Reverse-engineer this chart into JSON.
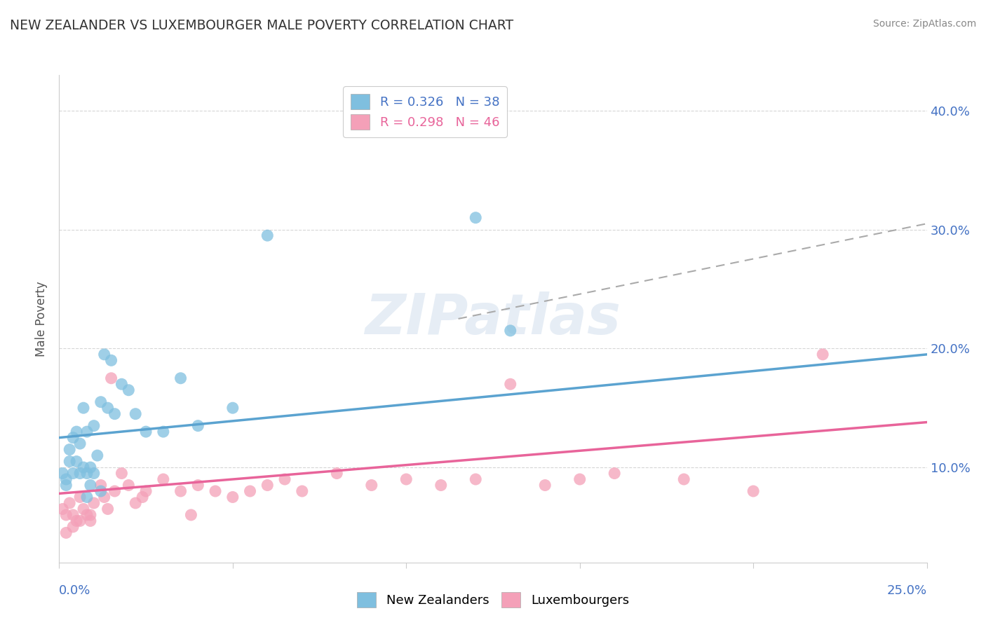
{
  "title": "NEW ZEALANDER VS LUXEMBOURGER MALE POVERTY CORRELATION CHART",
  "source": "Source: ZipAtlas.com",
  "ylabel_label": "Male Poverty",
  "legend_nz": "R = 0.326   N = 38",
  "legend_lux": "R = 0.298   N = 46",
  "legend_label_nz": "New Zealanders",
  "legend_label_lux": "Luxembourgers",
  "watermark": "ZIPatlas",
  "nz_color": "#7fbfdf",
  "lux_color": "#f4a0b8",
  "nz_line_color": "#5ba3d0",
  "lux_line_color": "#e8649a",
  "dashed_line_color": "#aaaaaa",
  "background_color": "#ffffff",
  "xlim": [
    0.0,
    0.25
  ],
  "ylim": [
    0.02,
    0.43
  ],
  "nz_scatter_x": [
    0.001,
    0.002,
    0.002,
    0.003,
    0.003,
    0.004,
    0.004,
    0.005,
    0.005,
    0.006,
    0.006,
    0.007,
    0.007,
    0.008,
    0.008,
    0.009,
    0.009,
    0.01,
    0.01,
    0.011,
    0.012,
    0.013,
    0.014,
    0.015,
    0.016,
    0.018,
    0.02,
    0.022,
    0.025,
    0.03,
    0.035,
    0.04,
    0.05,
    0.06,
    0.12,
    0.13,
    0.008,
    0.012
  ],
  "nz_scatter_y": [
    0.095,
    0.09,
    0.085,
    0.115,
    0.105,
    0.125,
    0.095,
    0.13,
    0.105,
    0.12,
    0.095,
    0.15,
    0.1,
    0.095,
    0.13,
    0.1,
    0.085,
    0.095,
    0.135,
    0.11,
    0.155,
    0.195,
    0.15,
    0.19,
    0.145,
    0.17,
    0.165,
    0.145,
    0.13,
    0.13,
    0.175,
    0.135,
    0.15,
    0.295,
    0.31,
    0.215,
    0.075,
    0.08
  ],
  "lux_scatter_x": [
    0.001,
    0.002,
    0.003,
    0.004,
    0.005,
    0.006,
    0.007,
    0.008,
    0.009,
    0.01,
    0.012,
    0.013,
    0.015,
    0.016,
    0.018,
    0.02,
    0.022,
    0.025,
    0.03,
    0.035,
    0.04,
    0.045,
    0.05,
    0.055,
    0.06,
    0.065,
    0.07,
    0.08,
    0.09,
    0.1,
    0.11,
    0.12,
    0.13,
    0.14,
    0.15,
    0.16,
    0.18,
    0.2,
    0.22,
    0.002,
    0.004,
    0.006,
    0.009,
    0.014,
    0.024,
    0.038
  ],
  "lux_scatter_y": [
    0.065,
    0.06,
    0.07,
    0.06,
    0.055,
    0.075,
    0.065,
    0.06,
    0.055,
    0.07,
    0.085,
    0.075,
    0.175,
    0.08,
    0.095,
    0.085,
    0.07,
    0.08,
    0.09,
    0.08,
    0.085,
    0.08,
    0.075,
    0.08,
    0.085,
    0.09,
    0.08,
    0.095,
    0.085,
    0.09,
    0.085,
    0.09,
    0.17,
    0.085,
    0.09,
    0.095,
    0.09,
    0.08,
    0.195,
    0.045,
    0.05,
    0.055,
    0.06,
    0.065,
    0.075,
    0.06
  ],
  "nz_trend_x": [
    0.0,
    0.25
  ],
  "nz_trend_y": [
    0.125,
    0.195
  ],
  "lux_trend_x": [
    0.0,
    0.25
  ],
  "lux_trend_y": [
    0.078,
    0.138
  ],
  "dash_trend_x": [
    0.115,
    0.25
  ],
  "dash_trend_y": [
    0.225,
    0.305
  ]
}
